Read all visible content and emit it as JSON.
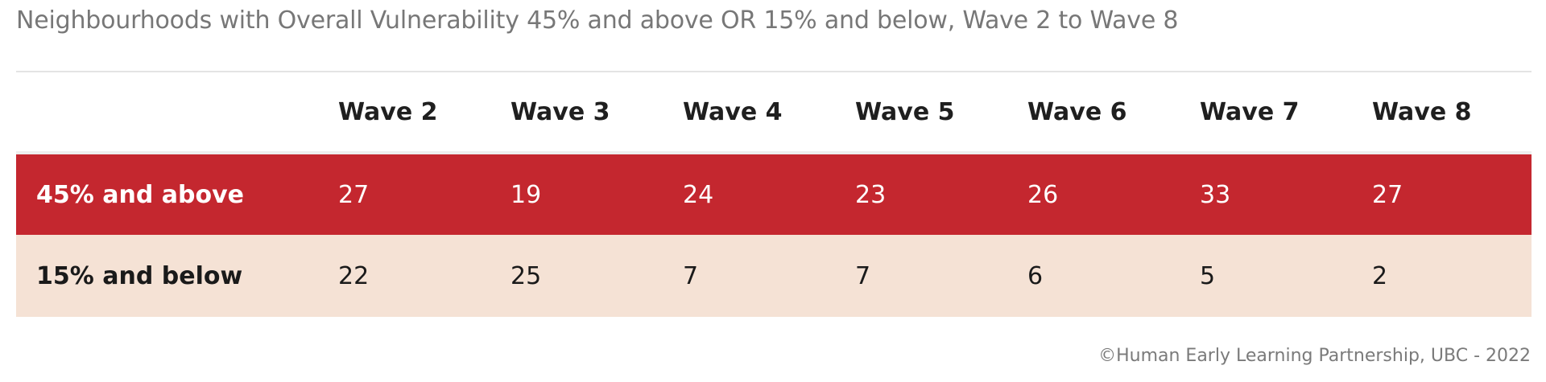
{
  "chart_data": {
    "type": "table",
    "title": "Neighbourhoods with Overall Vulnerability 45% and above OR 15% and below, Wave 2 to Wave 8",
    "columns": [
      "Wave 2",
      "Wave 3",
      "Wave 4",
      "Wave 5",
      "Wave 6",
      "Wave 7",
      "Wave 8"
    ],
    "rows": [
      {
        "label": "45% and above",
        "values": [
          27,
          19,
          24,
          23,
          26,
          33,
          27
        ],
        "color": "#c4272f"
      },
      {
        "label": "15% and below",
        "values": [
          22,
          25,
          7,
          7,
          6,
          5,
          2
        ],
        "color": "#f5e2d5"
      }
    ],
    "credit": "©Human Early Learning Partnership, UBC - 2022"
  }
}
